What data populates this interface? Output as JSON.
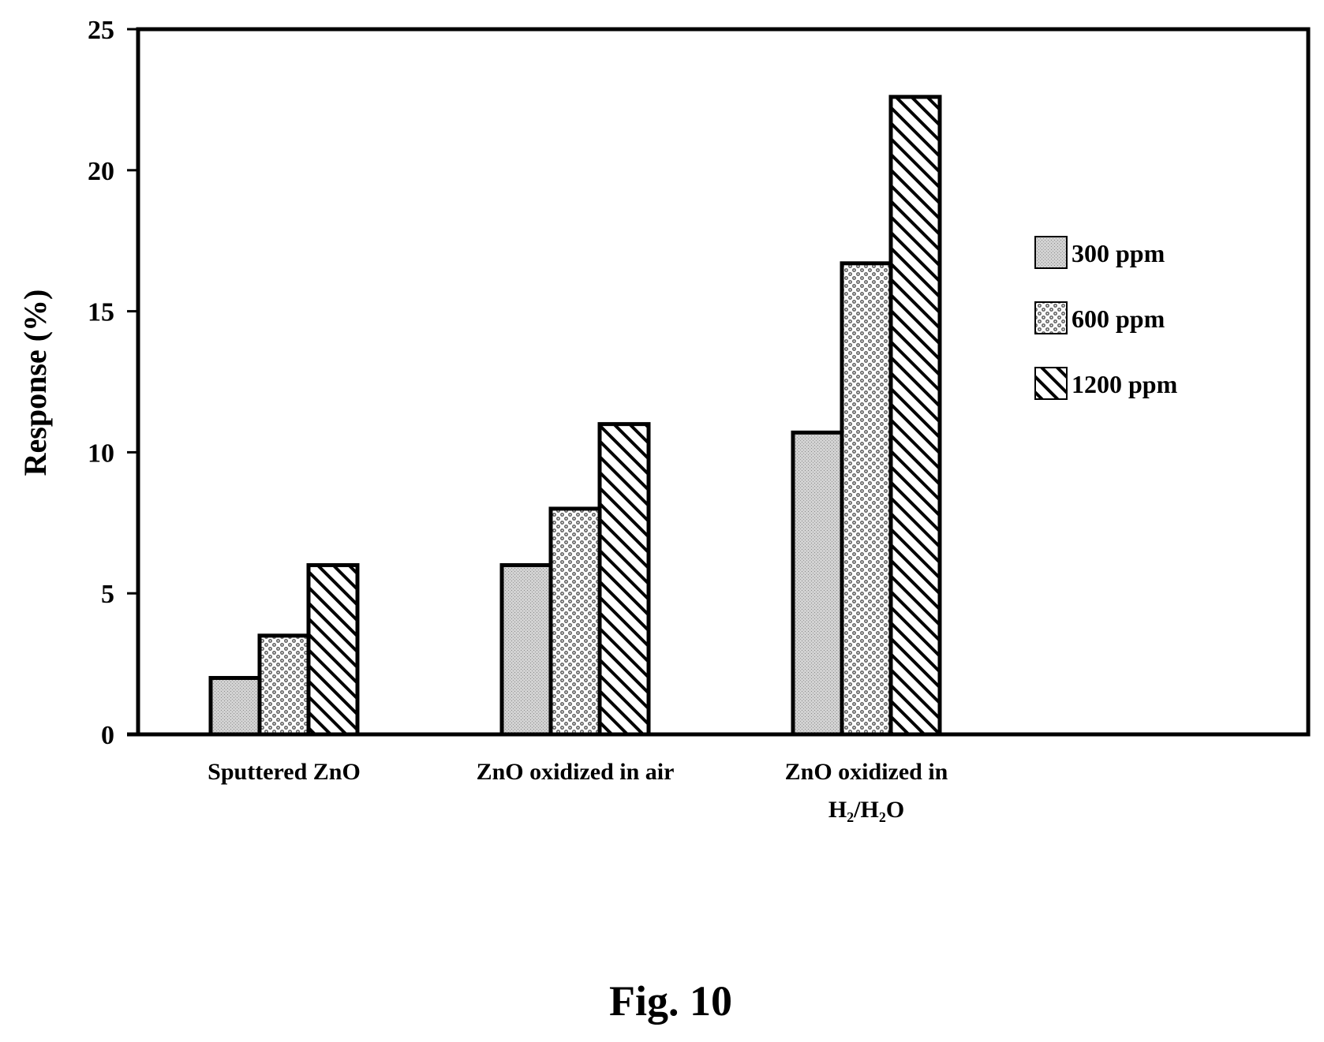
{
  "chart_data": {
    "type": "bar",
    "ylabel": "Response (%)",
    "xlabel": "",
    "ylim": [
      0,
      25
    ],
    "yticks": [
      "0",
      "5",
      "10",
      "15",
      "20",
      "25"
    ],
    "grid": false,
    "legend_placement": "right",
    "categories": [
      {
        "lines": [
          "Sputtered ZnO"
        ]
      },
      {
        "lines": [
          "ZnO oxidized in air"
        ]
      },
      {
        "lines": [
          "ZnO oxidized in",
          "H₂/H₂O"
        ]
      }
    ],
    "series": [
      {
        "name": "300 ppm",
        "pattern": "stipple",
        "values": [
          2,
          6,
          10.7
        ]
      },
      {
        "name": "600 ppm",
        "pattern": "dots",
        "values": [
          3.5,
          8,
          16.7
        ]
      },
      {
        "name": "1200 ppm",
        "pattern": "hatch",
        "values": [
          6,
          11,
          22.6
        ]
      }
    ]
  },
  "caption": "Fig. 10",
  "colors": {
    "stroke": "#000000",
    "stipple": "#cccccc",
    "background": "#ffffff"
  }
}
